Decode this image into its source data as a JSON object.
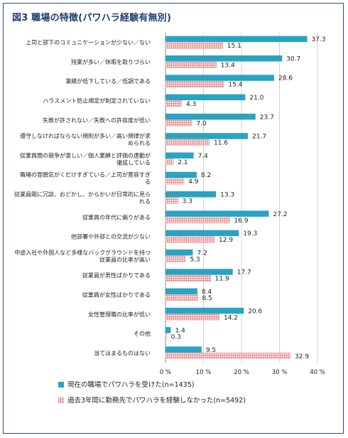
{
  "chart_data": {
    "type": "bar",
    "orientation": "horizontal",
    "title": "図3 職場の特徴(パワハラ経験有無別)",
    "xlim": [
      0,
      40
    ],
    "x_ticks": [
      "0 %",
      "10 %",
      "20 %",
      "30 %",
      "40 %"
    ],
    "grid": true,
    "legend_position": "bottom",
    "categories": [
      [
        "上司と部下のコミュニケーションが少ない／ない"
      ],
      [
        "残業が多い／休暇を取りづらい"
      ],
      [
        "業績が低下している／低調である"
      ],
      [
        "ハラスメント防止規定が制定されていない"
      ],
      [
        "失敗が許されない／失敗への許容度が低い"
      ],
      [
        "遵守しなければならない規則が多い／高い規律が求",
        "められる"
      ],
      [
        "従業員間の競争が激しい／個人業績と評価の連動が",
        "徹底している"
      ],
      [
        "職場の雰囲気がくだけすぎている／上司が寛容すぎ",
        "る"
      ],
      [
        "従業員間に冗談、おどかし、からかいが日常的に見ら",
        "れる"
      ],
      [
        "従業員の年代に偏りがある"
      ],
      [
        "他部署や外部との交流が少ない"
      ],
      [
        "中途入社や外国人など多様なバックグラウンドを持つ",
        "従業員の比率が高い"
      ],
      [
        "従業員が男性ばかりである"
      ],
      [
        "従業員が女性ばかりである"
      ],
      [
        "女性管理職の比率が低い"
      ],
      [
        "その他"
      ],
      [
        "当てはまるものはない"
      ]
    ],
    "series": [
      {
        "name": "現在の職場でパワハラを受けた(n=1435)",
        "color": "#2aa3c2",
        "values": [
          37.3,
          30.7,
          28.6,
          21.0,
          23.7,
          21.7,
          7.4,
          8.2,
          13.3,
          27.2,
          19.3,
          7.2,
          17.7,
          8.4,
          20.6,
          1.4,
          9.5
        ]
      },
      {
        "name": "過去3年間に勤務先でパワハラを経験しなかった(n=5492)",
        "color": "#e8a3a3",
        "values": [
          15.1,
          13.4,
          15.4,
          4.3,
          7.0,
          11.6,
          2.1,
          4.9,
          3.3,
          16.9,
          12.9,
          5.3,
          11.9,
          8.5,
          14.2,
          0.3,
          32.9
        ]
      }
    ]
  }
}
